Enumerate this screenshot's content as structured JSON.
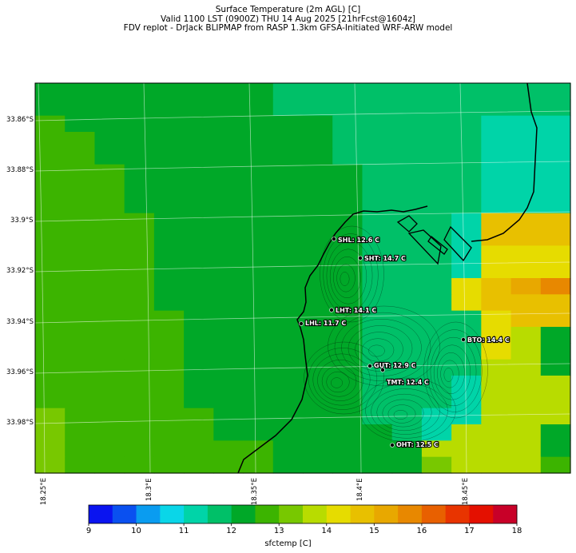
{
  "header": {
    "line1": "Surface Temperature (2m AGL) [C]",
    "line2": "Valid 1100 LST (0900Z) THU 14 Aug 2025 [21hrFcst@1604z]",
    "line3": "FDV replot - DrJack BLIPMAP from RASP 1.3km GFSA-Initiated WRF-ARW model"
  },
  "map": {
    "lat_labels": [
      "33.86°S",
      "33.88°S",
      "33.9°S",
      "33.92°S",
      "33.94°S",
      "33.96°S",
      "33.98°S"
    ],
    "lon_labels": [
      "18.25°E",
      "18.3°E",
      "18.35°E",
      "18.4°E",
      "18.45°E"
    ],
    "stations": [
      {
        "label": "SHL: 12.6 C"
      },
      {
        "label": "SHT: 14.7 C"
      },
      {
        "label": "LHT: 14.1 C"
      },
      {
        "label": "LHL: 11.7 C"
      },
      {
        "label": "BTO: 14.4 C"
      },
      {
        "label": "GUT: 12.9 C"
      },
      {
        "label": "TMT: 12.4 C"
      },
      {
        "label": "OHT: 12.5 C"
      }
    ]
  },
  "colorbar": {
    "label": "sfctemp [C]",
    "ticks": [
      "9",
      "10",
      "11",
      "12",
      "13",
      "14",
      "15",
      "16",
      "17",
      "18"
    ],
    "colors": [
      "#0a14f0",
      "#0a50f0",
      "#0a9cf0",
      "#0ad6e8",
      "#00d4a8",
      "#00c068",
      "#00a828",
      "#3cb400",
      "#78c800",
      "#b8dc00",
      "#e6dc00",
      "#e8c000",
      "#e8a800",
      "#e88800",
      "#e86000",
      "#e83400",
      "#e41000",
      "#c80028"
    ]
  }
}
